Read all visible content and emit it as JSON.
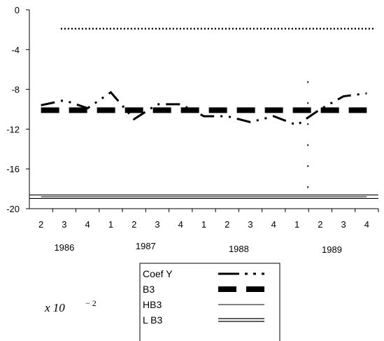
{
  "chart_data": {
    "type": "line",
    "title": "",
    "xlabel": "",
    "ylabel": "",
    "ylim": [
      -20,
      0
    ],
    "yticks": [
      0,
      -4,
      -8,
      -12,
      -16,
      -20
    ],
    "categories": [
      "2",
      "3",
      "4",
      "1",
      "2",
      "3",
      "4",
      "1",
      "2",
      "3",
      "4",
      "1",
      "2",
      "3",
      "4"
    ],
    "years": [
      {
        "label": "1986",
        "span": [
          0,
          2
        ]
      },
      {
        "label": "1987",
        "span": [
          3,
          6
        ]
      },
      {
        "label": "1988",
        "span": [
          7,
          10
        ]
      },
      {
        "label": "1989",
        "span": [
          11,
          14
        ]
      }
    ],
    "scale_note": {
      "base": "x  10",
      "exponent": "− 2"
    },
    "series": [
      {
        "name": "Coef Y",
        "style": "dash-dot-dot",
        "values": [
          -9.6,
          -9.1,
          -9.9,
          -8.3,
          -11.0,
          -9.5,
          -9.5,
          -10.7,
          -10.7,
          -11.3,
          -10.7,
          -11.6,
          -10.0,
          -8.7,
          -8.4
        ]
      },
      {
        "name": "B3",
        "style": "heavy-dash",
        "values": [
          -10.1,
          -10.1,
          -10.1,
          -10.1,
          -10.1,
          -10.1,
          -10.1,
          -10.1,
          -10.1,
          -10.1,
          -10.1,
          -10.1,
          -10.1,
          -10.1,
          -10.1
        ]
      },
      {
        "name": "HB3",
        "style": "thin",
        "values": [
          -18.8,
          -18.8,
          -18.8,
          -18.8,
          -18.8,
          -18.8,
          -18.8,
          -18.8,
          -18.8,
          -18.8,
          -18.8,
          -18.8,
          -18.8,
          -18.8,
          -18.8
        ]
      },
      {
        "name": "L B3",
        "style": "double",
        "values": [
          -18.8,
          -18.8,
          -18.8,
          -18.8,
          -18.8,
          -18.8,
          -18.8,
          -18.8,
          -18.8,
          -18.8,
          -18.8,
          -18.8,
          -18.8,
          -18.8,
          -18.8
        ]
      }
    ],
    "upper_dotted_level": -1.9,
    "break_marker_index": 12,
    "grid": false,
    "legend_position": "bottom-center"
  }
}
